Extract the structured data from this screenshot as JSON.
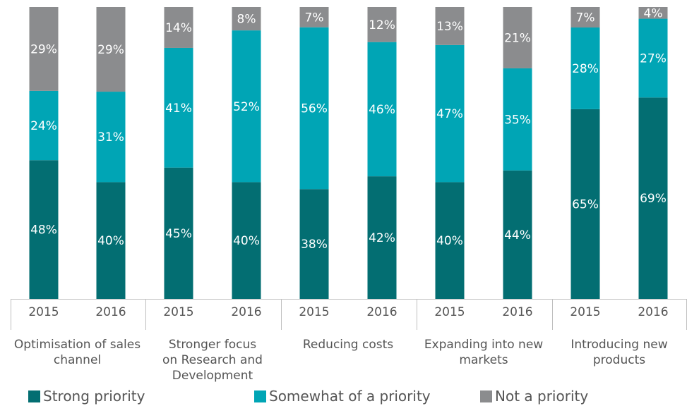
{
  "chart_data": {
    "type": "bar",
    "stacked": true,
    "groups": [
      {
        "label": "Optimisation of sales channel",
        "lines": [
          "Optimisation of sales",
          "channel"
        ]
      },
      {
        "label": "Stronger focus on Research and Development",
        "lines": [
          "Stronger focus",
          "on Research and",
          "Development"
        ]
      },
      {
        "label": "Reducing costs",
        "lines": [
          "Reducing costs"
        ]
      },
      {
        "label": "Expanding into new markets",
        "lines": [
          "Expanding into new",
          "markets"
        ]
      },
      {
        "label": "Introducing new products",
        "lines": [
          "Introducing new",
          "products"
        ]
      }
    ],
    "years": [
      "2015",
      "2016"
    ],
    "categories": [
      "Optimisation of sales channel 2015",
      "Optimisation of sales channel 2016",
      "Stronger focus on Research and Development 2015",
      "Stronger focus on Research and Development 2016",
      "Reducing costs 2015",
      "Reducing costs 2016",
      "Expanding into new markets 2015",
      "Expanding into new markets 2016",
      "Introducing new products 2015",
      "Introducing new products 2016"
    ],
    "series": [
      {
        "name": "Strong priority",
        "color": "#036e72",
        "values": [
          48,
          40,
          45,
          40,
          38,
          42,
          40,
          44,
          65,
          69
        ]
      },
      {
        "name": "Somewhat of a priority",
        "color": "#00a5b5",
        "values": [
          24,
          31,
          41,
          52,
          56,
          46,
          47,
          35,
          28,
          27
        ]
      },
      {
        "name": "Not a priority",
        "color": "#8b8c8e",
        "values": [
          29,
          29,
          14,
          8,
          7,
          12,
          13,
          21,
          7,
          4
        ]
      }
    ],
    "value_suffix": "%",
    "legend_position": "bottom",
    "grid": false
  }
}
